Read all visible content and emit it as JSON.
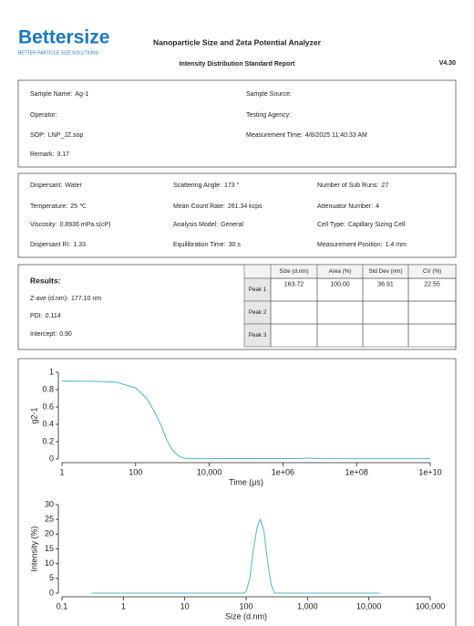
{
  "header": {
    "logo": "Bettersize",
    "tagline": "BETTER PARTICLE SIZE SOLUTIONS",
    "title": "Nanoparticle Size and Zeta Potential Analyzer",
    "subtitle": "Intensity Distribution Standard Report",
    "version": "V4.30"
  },
  "sample_info": [
    {
      "label": "Sample Name:",
      "value": "Ag-1"
    },
    {
      "label": "Sample Source:"
    },
    {
      "label": "Operator:"
    },
    {
      "label": "Testing Agency:"
    },
    {
      "label": "SOP:",
      "value": "LNP_JZ.sop"
    },
    {
      "label": "Measurement Time:",
      "value": "4/8/2025 11:40:33 AM"
    },
    {
      "label": "Remark:",
      "value": "3.17"
    }
  ],
  "conditions": [
    {
      "label": "Dispersant:",
      "value": "Water"
    },
    {
      "label": "Scattering Angle:",
      "value": "173 °"
    },
    {
      "label": "Number of Sub Runs:",
      "value": "27"
    },
    {
      "label": "Temperature:",
      "value": "25 ℃"
    },
    {
      "label": "Mean Count Rate:",
      "value": "261.34 kcps"
    },
    {
      "label": "Attenuator Number:",
      "value": "4"
    },
    {
      "label": "Viscosity:",
      "value": "0.8936 mPa.s(cP)"
    },
    {
      "label": "Analysis Model:",
      "value": "General"
    },
    {
      "label": "Cell Type:",
      "value": "Capillary Sizing Cell"
    },
    {
      "label": "Dispersant RI:",
      "value": "1.33"
    },
    {
      "label": "Equilibration Time:",
      "value": "30 s"
    },
    {
      "label": "Measurement Position:",
      "value": "1.4 mm"
    }
  ],
  "results": {
    "title": "Results:",
    "fields": [
      {
        "label": "Z-ave (d.nm):",
        "value": "177.10 nm"
      },
      {
        "label": "PDI:",
        "value": "0.114"
      },
      {
        "label": "Intercept:",
        "value": "0.90"
      }
    ],
    "table": {
      "columns": [
        "Size (d.nm)",
        "Area (%)",
        "Std Dev (nm)",
        "CV (%)"
      ],
      "rows": [
        {
          "label": "Peak 1",
          "values": [
            "163.72",
            "100.00",
            "36.91",
            "22.55"
          ]
        },
        {
          "label": "Peak 2"
        },
        {
          "label": "Peak 3"
        }
      ]
    }
  },
  "chart_data": [
    {
      "type": "line",
      "x_label": "Time (μs)",
      "y_label": "g2-1",
      "log_x": true,
      "color": "#4db6c6",
      "x": [
        1,
        10,
        30,
        100,
        200,
        350,
        500,
        700,
        1000,
        1500,
        2000,
        3000,
        10000,
        100000,
        1000000,
        3000000,
        5000000,
        8000000,
        100000000,
        10000000000
      ],
      "values": [
        0.9,
        0.895,
        0.885,
        0.82,
        0.7,
        0.52,
        0.38,
        0.22,
        0.1,
        0.035,
        0.012,
        0.004,
        0.004,
        0.005,
        0.005,
        0.006,
        0.012,
        0.005,
        0.004,
        0.004
      ],
      "xlim": [
        1,
        10000000000
      ],
      "xticks": [
        1,
        100,
        {
          "value": 10000,
          "label": "10,000"
        },
        {
          "value": 1000000,
          "label": "1e+06"
        },
        {
          "value": 100000000,
          "label": "1e+08"
        },
        {
          "value": 10000000000,
          "label": "1e+10"
        }
      ],
      "ylim": [
        0,
        1
      ],
      "yticks": [
        0,
        0.2,
        0.4,
        0.6,
        0.8,
        1
      ]
    },
    {
      "type": "line",
      "x_label": "Size (d.nm)",
      "y_label": "Intensity (%)",
      "log_x": true,
      "color": "#4db6c6",
      "x": [
        0.3,
        10,
        90,
        100,
        115,
        130,
        150,
        170,
        195,
        220,
        255,
        290,
        1000,
        15000
      ],
      "values": [
        0,
        0,
        0,
        0.5,
        5,
        14,
        22,
        25,
        21,
        12,
        3,
        0,
        0,
        0
      ],
      "xlim": [
        0.1,
        100000
      ],
      "xticks": [
        0.1,
        1,
        10,
        100,
        {
          "value": 1000,
          "label": "1,000"
        },
        {
          "value": 10000,
          "label": "10,000"
        },
        {
          "value": 100000,
          "label": "100,000"
        }
      ],
      "ylim": [
        0,
        30
      ],
      "yticks": [
        0,
        5,
        10,
        15,
        20,
        25,
        30
      ]
    }
  ]
}
